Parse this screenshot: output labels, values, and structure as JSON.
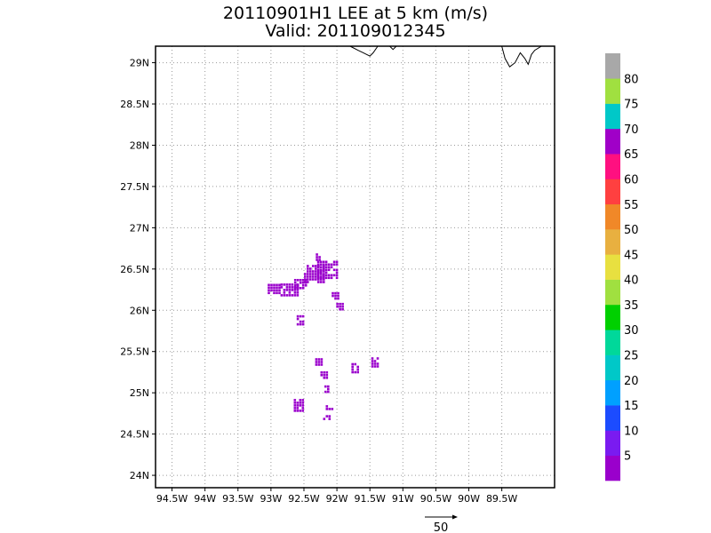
{
  "title": {
    "line1": "20110901H1 LEE at 5 km (m/s)",
    "line2": "Valid: 201109012345"
  },
  "chart_data": {
    "type": "scatter",
    "title": "20110901H1 LEE at 5 km (m/s)",
    "subtitle": "Valid: 201109012345",
    "xlim": [
      -94.75,
      -88.7
    ],
    "ylim": [
      23.85,
      29.2
    ],
    "x_ticks": [
      -94.5,
      -94,
      -93.5,
      -93,
      -92.5,
      -92,
      -91.5,
      -91,
      -90.5,
      -90,
      -89.5
    ],
    "x_tick_labels": [
      "94.5W",
      "94W",
      "93.5W",
      "93W",
      "92.5W",
      "92W",
      "91.5W",
      "91W",
      "90.5W",
      "90W",
      "89.5W"
    ],
    "y_ticks": [
      24,
      24.5,
      25,
      25.5,
      26,
      26.5,
      27,
      27.5,
      28,
      28.5,
      29
    ],
    "y_tick_labels": [
      "24N",
      "24.5N",
      "25N",
      "25.5N",
      "26N",
      "26.5N",
      "27N",
      "27.5N",
      "28N",
      "28.5N",
      "29N"
    ],
    "grid": true,
    "wind_speed_color": "#9a00cc",
    "wind_speed_class": "5",
    "wind_clusters": [
      {
        "lon": -92.95,
        "lat": 26.27,
        "span_lon": 0.2,
        "span_lat": 0.1
      },
      {
        "lon": -92.73,
        "lat": 26.25,
        "span_lon": 0.25,
        "span_lat": 0.15
      },
      {
        "lon": -92.55,
        "lat": 26.33,
        "span_lon": 0.2,
        "span_lat": 0.1
      },
      {
        "lon": -92.35,
        "lat": 26.45,
        "span_lon": 0.3,
        "span_lat": 0.2
      },
      {
        "lon": -92.15,
        "lat": 26.5,
        "span_lon": 0.3,
        "span_lat": 0.2
      },
      {
        "lon": -92.28,
        "lat": 26.65,
        "span_lon": 0.08,
        "span_lat": 0.08
      },
      {
        "lon": -92.02,
        "lat": 26.18,
        "span_lon": 0.12,
        "span_lat": 0.08
      },
      {
        "lon": -91.95,
        "lat": 26.05,
        "span_lon": 0.12,
        "span_lat": 0.08
      },
      {
        "lon": -92.55,
        "lat": 25.88,
        "span_lon": 0.12,
        "span_lat": 0.12
      },
      {
        "lon": -92.28,
        "lat": 25.38,
        "span_lon": 0.1,
        "span_lat": 0.08
      },
      {
        "lon": -92.2,
        "lat": 25.22,
        "span_lon": 0.1,
        "span_lat": 0.08
      },
      {
        "lon": -92.15,
        "lat": 25.05,
        "span_lon": 0.08,
        "span_lat": 0.08
      },
      {
        "lon": -91.72,
        "lat": 25.3,
        "span_lon": 0.12,
        "span_lat": 0.12
      },
      {
        "lon": -91.42,
        "lat": 25.38,
        "span_lon": 0.12,
        "span_lat": 0.1
      },
      {
        "lon": -92.58,
        "lat": 24.85,
        "span_lon": 0.15,
        "span_lat": 0.15
      },
      {
        "lon": -92.12,
        "lat": 24.82,
        "span_lon": 0.1,
        "span_lat": 0.06
      },
      {
        "lon": -92.15,
        "lat": 24.7,
        "span_lon": 0.12,
        "span_lat": 0.06
      }
    ],
    "coastline": [
      [
        [
          -91.8,
          29.2
        ],
        [
          -91.68,
          29.15
        ],
        [
          -91.6,
          29.12
        ],
        [
          -91.55,
          29.1
        ],
        [
          -91.5,
          29.08
        ],
        [
          -91.45,
          29.12
        ],
        [
          -91.38,
          29.2
        ]
      ],
      [
        [
          -91.2,
          29.2
        ],
        [
          -91.15,
          29.16
        ],
        [
          -91.1,
          29.2
        ]
      ],
      [
        [
          -89.5,
          29.2
        ],
        [
          -89.45,
          29.05
        ],
        [
          -89.38,
          28.95
        ],
        [
          -89.3,
          29.0
        ],
        [
          -89.22,
          29.12
        ],
        [
          -89.15,
          29.05
        ],
        [
          -89.1,
          28.98
        ],
        [
          -89.05,
          29.1
        ],
        [
          -89.0,
          29.15
        ],
        [
          -88.9,
          29.2
        ]
      ]
    ],
    "reference_vector": {
      "label": "50",
      "value": 50,
      "units": "m/s"
    },
    "colorbar": {
      "labels": [
        "5",
        "10",
        "15",
        "20",
        "25",
        "30",
        "35",
        "40",
        "45",
        "50",
        "55",
        "60",
        "65",
        "70",
        "75",
        "80"
      ],
      "colors": [
        "#9a00cc",
        "#7a1bf0",
        "#1c4cff",
        "#00a0ff",
        "#00c8c8",
        "#00d89a",
        "#00d000",
        "#a0e040",
        "#e8e040",
        "#e8b040",
        "#f08828",
        "#ff4040",
        "#ff1080",
        "#a000c8",
        "#00c8c8",
        "#a0e040",
        "#a8a8a8"
      ]
    }
  }
}
